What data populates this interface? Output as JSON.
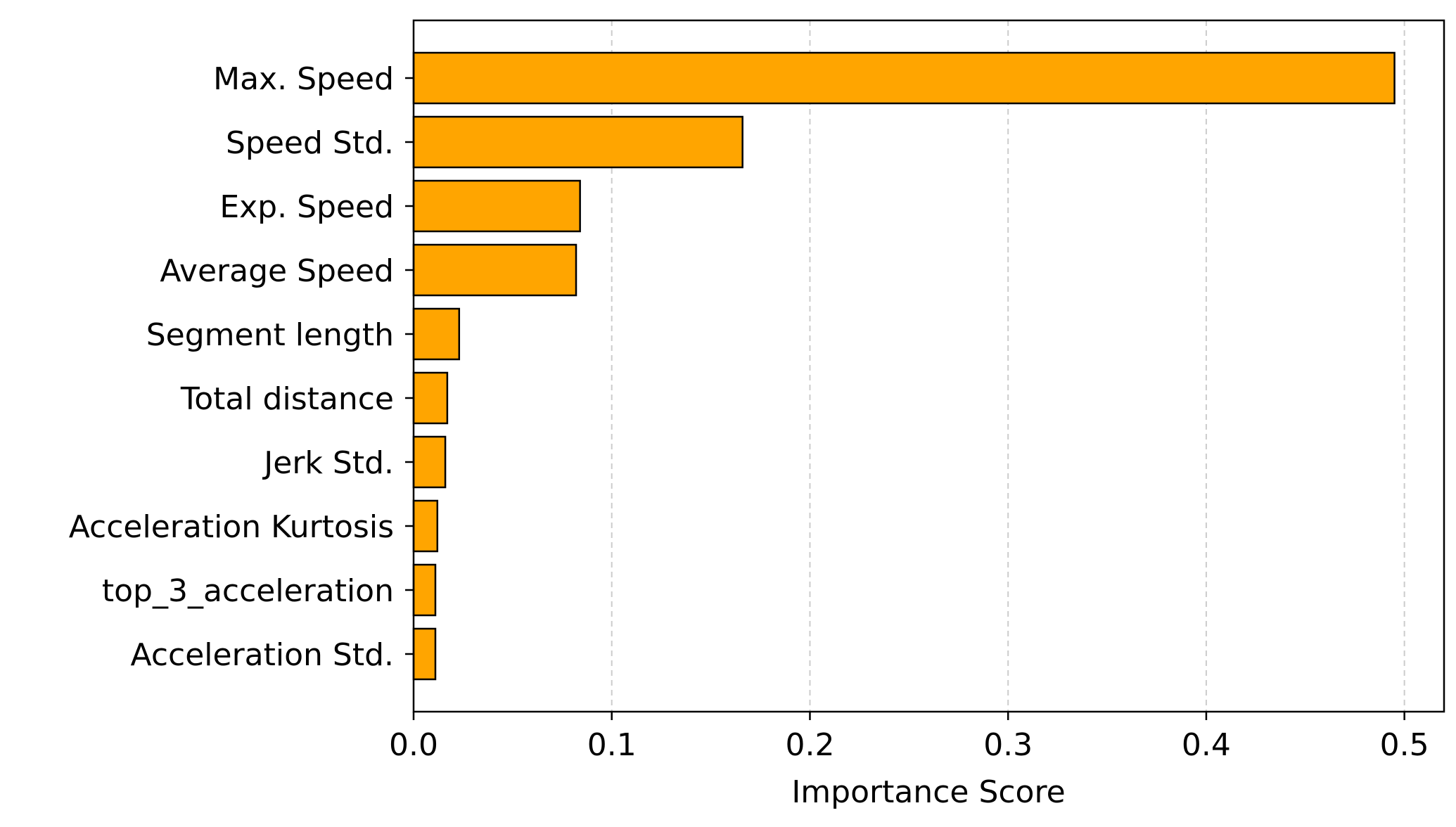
{
  "chart_data": {
    "type": "bar",
    "orientation": "horizontal",
    "title": "",
    "xlabel": "Importance Score",
    "ylabel": "",
    "categories": [
      "Max. Speed",
      "Speed Std.",
      "Exp. Speed",
      "Average Speed",
      "Segment length",
      "Total distance",
      "Jerk Std.",
      "Acceleration Kurtosis",
      "top_3_acceleration",
      "Acceleration Std."
    ],
    "values": [
      0.495,
      0.166,
      0.084,
      0.082,
      0.023,
      0.017,
      0.016,
      0.012,
      0.011,
      0.011
    ],
    "xlim": [
      0,
      0.52
    ],
    "xticks": [
      "0.0",
      "0.1",
      "0.2",
      "0.3",
      "0.4",
      "0.5"
    ],
    "xtick_values": [
      0,
      0.1,
      0.2,
      0.3,
      0.4,
      0.5
    ],
    "grid": "vertical dashed",
    "legend": "none",
    "colors": {
      "bar_fill": "#ffa500",
      "bar_edge": "#000000",
      "grid": "#cccccc",
      "axis": "#000000"
    }
  }
}
